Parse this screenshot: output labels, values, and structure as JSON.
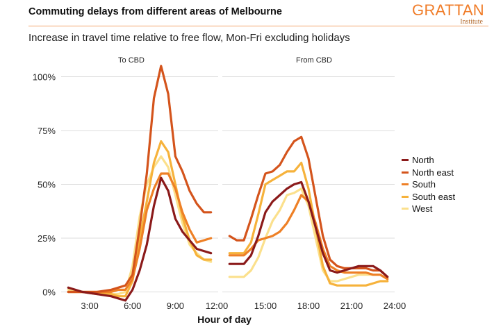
{
  "header": {
    "title": "Commuting delays from different areas of Melbourne",
    "subtitle": "Increase in travel time relative to free flow, Mon-Fri excluding holidays",
    "logo_word": "GRATTAN",
    "logo_sub": "Institute"
  },
  "chart_data": {
    "type": "line",
    "xlabel": "Hour of day",
    "ylabel": "",
    "ylim": [
      -0.05,
      1.05
    ],
    "yticks": [
      0,
      0.25,
      0.5,
      0.75,
      1.0
    ],
    "ytick_labels": [
      "0%",
      "25%",
      "50%",
      "75%",
      "100%"
    ],
    "grid": "horizontal",
    "legend_position": "right",
    "panels": [
      {
        "title": "To CBD",
        "xlim": [
          1,
          12
        ],
        "xticks": [
          3,
          6,
          9,
          12
        ],
        "xtick_labels": [
          "3:00",
          "6:00",
          "9:00",
          "12:00"
        ],
        "series": [
          {
            "name": "North",
            "color": "#8b1a1a",
            "x": [
              1.5,
              2.5,
              3.5,
              4.5,
              5,
              5.5,
              6,
              6.5,
              7,
              7.5,
              8,
              8.5,
              9,
              9.5,
              10,
              10.5,
              11,
              11.5
            ],
            "y": [
              0.02,
              0.0,
              -0.01,
              -0.02,
              -0.03,
              -0.04,
              0.01,
              0.1,
              0.22,
              0.4,
              0.53,
              0.47,
              0.34,
              0.28,
              0.24,
              0.2,
              0.19,
              0.18
            ]
          },
          {
            "name": "North east",
            "color": "#d4541c",
            "x": [
              1.5,
              2.5,
              3.5,
              4.5,
              5,
              5.5,
              6,
              6.5,
              7,
              7.5,
              8,
              8.5,
              9,
              9.5,
              10,
              10.5,
              11,
              11.5
            ],
            "y": [
              0.0,
              0.0,
              0.0,
              0.01,
              0.02,
              0.03,
              0.08,
              0.3,
              0.55,
              0.9,
              1.05,
              0.92,
              0.63,
              0.56,
              0.47,
              0.41,
              0.37,
              0.37
            ]
          },
          {
            "name": "South",
            "color": "#ee8026",
            "x": [
              1.5,
              2.5,
              3.5,
              4.5,
              5,
              5.5,
              6,
              6.5,
              7,
              7.5,
              8,
              8.5,
              9,
              9.5,
              10,
              10.5,
              11,
              11.5
            ],
            "y": [
              0.0,
              0.0,
              0.0,
              0.0,
              0.01,
              0.01,
              0.06,
              0.2,
              0.38,
              0.48,
              0.55,
              0.55,
              0.48,
              0.37,
              0.29,
              0.23,
              0.24,
              0.25
            ]
          },
          {
            "name": "South east",
            "color": "#f6b23b",
            "x": [
              1.5,
              2.5,
              3.5,
              4.5,
              5,
              5.5,
              6,
              6.5,
              7,
              7.5,
              8,
              8.5,
              9,
              9.5,
              10,
              10.5,
              11,
              11.5
            ],
            "y": [
              0.0,
              0.0,
              -0.01,
              -0.01,
              -0.02,
              -0.02,
              0.05,
              0.25,
              0.42,
              0.6,
              0.7,
              0.65,
              0.5,
              0.35,
              0.24,
              0.17,
              0.15,
              0.15
            ]
          },
          {
            "name": "West",
            "color": "#fbe08c",
            "x": [
              1.5,
              2.5,
              3.5,
              4.5,
              5,
              5.5,
              6,
              6.5,
              7,
              7.5,
              8,
              8.5,
              9,
              9.5,
              10,
              10.5,
              11,
              11.5
            ],
            "y": [
              0.01,
              0.0,
              0.0,
              -0.01,
              -0.01,
              0.0,
              0.12,
              0.35,
              0.5,
              0.58,
              0.63,
              0.58,
              0.45,
              0.32,
              0.22,
              0.18,
              0.15,
              0.14
            ]
          }
        ]
      },
      {
        "title": "From CBD",
        "xlim": [
          12,
          24
        ],
        "xticks": [
          15,
          18,
          21,
          24
        ],
        "xtick_labels": [
          "15:00",
          "18:00",
          "21:00",
          "24:00"
        ],
        "series": [
          {
            "name": "North",
            "color": "#8b1a1a",
            "x": [
              12.5,
              13,
              13.5,
              14,
              14.5,
              15,
              15.5,
              16,
              16.5,
              17,
              17.5,
              18,
              18.5,
              19,
              19.5,
              20,
              20.5,
              21,
              21.5,
              22,
              22.5,
              23,
              23.5
            ],
            "y": [
              0.13,
              0.13,
              0.13,
              0.17,
              0.26,
              0.37,
              0.42,
              0.45,
              0.48,
              0.5,
              0.51,
              0.42,
              0.3,
              0.18,
              0.1,
              0.09,
              0.1,
              0.11,
              0.12,
              0.12,
              0.12,
              0.1,
              0.07
            ]
          },
          {
            "name": "North east",
            "color": "#d4541c",
            "x": [
              12.5,
              13,
              13.5,
              14,
              14.5,
              15,
              15.5,
              16,
              16.5,
              17,
              17.5,
              18,
              18.5,
              19,
              19.5,
              20,
              20.5,
              21,
              21.5,
              22,
              22.5,
              23,
              23.5
            ],
            "y": [
              0.26,
              0.24,
              0.24,
              0.34,
              0.45,
              0.55,
              0.56,
              0.59,
              0.65,
              0.7,
              0.72,
              0.62,
              0.44,
              0.26,
              0.15,
              0.12,
              0.11,
              0.11,
              0.11,
              0.11,
              0.1,
              0.1,
              0.07
            ]
          },
          {
            "name": "South",
            "color": "#ee8026",
            "x": [
              12.5,
              13,
              13.5,
              14,
              14.5,
              15,
              15.5,
              16,
              16.5,
              17,
              17.5,
              18,
              18.5,
              19,
              19.5,
              20,
              20.5,
              21,
              21.5,
              22,
              22.5,
              23,
              23.5
            ],
            "y": [
              0.17,
              0.17,
              0.17,
              0.2,
              0.24,
              0.25,
              0.26,
              0.28,
              0.32,
              0.38,
              0.45,
              0.42,
              0.32,
              0.2,
              0.12,
              0.1,
              0.09,
              0.09,
              0.09,
              0.09,
              0.08,
              0.08,
              0.06
            ]
          },
          {
            "name": "South east",
            "color": "#f6b23b",
            "x": [
              12.5,
              13,
              13.5,
              14,
              14.5,
              15,
              15.5,
              16,
              16.5,
              17,
              17.5,
              18,
              18.5,
              19,
              19.5,
              20,
              20.5,
              21,
              21.5,
              22,
              22.5,
              23,
              23.5
            ],
            "y": [
              0.18,
              0.18,
              0.18,
              0.23,
              0.36,
              0.5,
              0.52,
              0.54,
              0.56,
              0.56,
              0.6,
              0.48,
              0.3,
              0.12,
              0.04,
              0.03,
              0.03,
              0.03,
              0.03,
              0.03,
              0.04,
              0.05,
              0.05
            ]
          },
          {
            "name": "West",
            "color": "#fbe08c",
            "x": [
              12.5,
              13,
              13.5,
              14,
              14.5,
              15,
              15.5,
              16,
              16.5,
              17,
              17.5,
              18,
              18.5,
              19,
              19.5,
              20,
              20.5,
              21,
              21.5,
              22,
              22.5,
              23,
              23.5
            ],
            "y": [
              0.07,
              0.07,
              0.07,
              0.1,
              0.16,
              0.25,
              0.33,
              0.38,
              0.45,
              0.46,
              0.48,
              0.4,
              0.25,
              0.1,
              0.05,
              0.05,
              0.06,
              0.07,
              0.08,
              0.08,
              0.08,
              0.08,
              0.06
            ]
          }
        ]
      }
    ]
  }
}
